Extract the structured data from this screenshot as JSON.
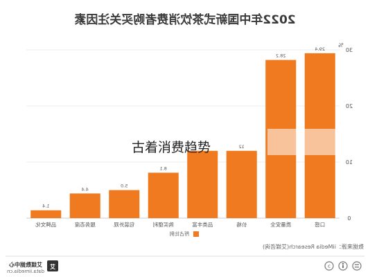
{
  "chart_data": {
    "type": "bar",
    "title": "2022年中国新式茶饮消费者购买关注因素",
    "categories": [
      "口感",
      "质量安全",
      "价格",
      "品类丰富",
      "购买便利",
      "包装外观",
      "服务态度",
      "品牌文化"
    ],
    "series": [
      {
        "name": "所占比例",
        "values": [
          29.4,
          28.2,
          12,
          12,
          8.1,
          5.0,
          4.4,
          1.4
        ]
      }
    ],
    "data_labels": [
      "29.4",
      "28.2",
      "12",
      "",
      "8.1",
      "5.0",
      "4.4",
      "1.4"
    ],
    "ylim": [
      0,
      30
    ],
    "yticks": [
      0,
      10,
      20,
      30
    ],
    "yunit": "%",
    "grid": true,
    "legend_position": "bottom-center",
    "bar_color": "#f07a1f",
    "highlight_color": "#fbc79c"
  },
  "source_text": "数据来源：iiMedia Research(艾媒咨询)",
  "overlay_caption": "古着消费趋势",
  "brand": {
    "name": "艾媒数据中心",
    "url": "data.iimedia.cn",
    "logo_char": "艾"
  },
  "footer_icons": [
    "cc-icon",
    "by-icon",
    "equal-icon"
  ]
}
